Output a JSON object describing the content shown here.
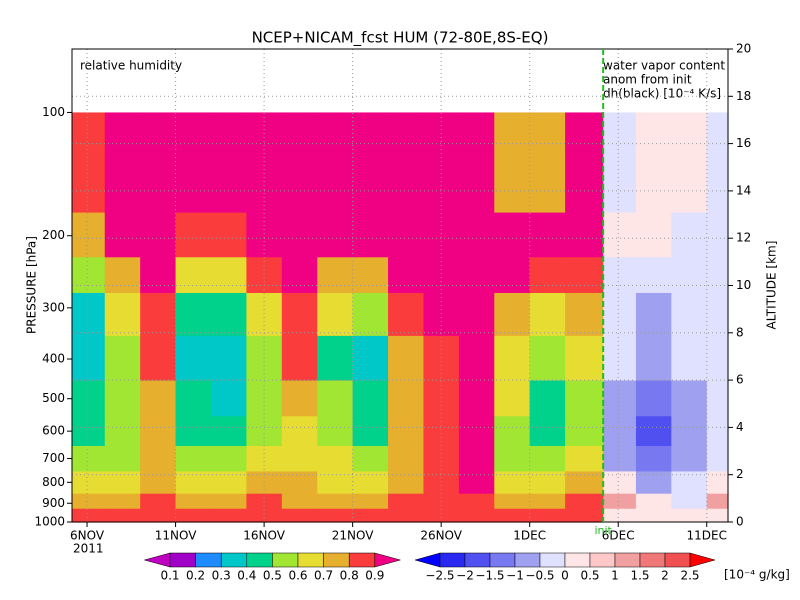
{
  "chart_data": {
    "type": "heatmap",
    "title": "NCEP+NICAM_fcst HUM (72-80E,8S-EQ)",
    "y_label": "PRESSURE [hPa]",
    "y2_label": "ALTITUDE [km]",
    "xlim": [
      5.15,
      42.2
    ],
    "xticks": [
      {
        "value": 6,
        "label": "6NOV"
      },
      {
        "value": 11,
        "label": "11NOV"
      },
      {
        "value": 16,
        "label": "16NOV"
      },
      {
        "value": 21,
        "label": "21NOV"
      },
      {
        "value": 26,
        "label": "26NOV"
      },
      {
        "value": 31,
        "label": "1DEC"
      },
      {
        "value": 36,
        "label": "6DEC"
      },
      {
        "value": 41,
        "label": "11DEC"
      }
    ],
    "year_label": "2011",
    "ylim": [
      1000,
      70
    ],
    "log_y": true,
    "yticks": [
      100,
      200,
      300,
      400,
      500,
      600,
      700,
      800,
      900,
      1000
    ],
    "y2lim": [
      0,
      20
    ],
    "y2ticks": [
      0,
      2,
      4,
      6,
      8,
      10,
      12,
      14,
      16,
      18,
      20
    ],
    "grid": true,
    "init": {
      "x": 35.15,
      "label": "init",
      "color": "#22bb22"
    },
    "pressure_bins": [
      1000,
      925,
      850,
      750,
      650,
      550,
      450,
      350,
      275,
      225,
      175,
      100
    ],
    "humidity": {
      "label": "relative humidity",
      "time_bins": [
        5.15,
        7,
        9,
        11,
        13,
        15,
        17,
        19,
        21,
        23,
        25,
        27,
        29,
        31,
        33,
        35.15
      ],
      "values": [
        [
          0.85,
          0.85,
          0.85,
          0.85,
          0.85,
          0.85,
          0.85,
          0.85,
          0.85,
          0.85,
          0.85,
          0.85,
          0.85,
          0.85,
          0.85
        ],
        [
          0.75,
          0.75,
          0.8,
          0.75,
          0.75,
          0.8,
          0.75,
          0.75,
          0.75,
          0.8,
          0.85,
          0.85,
          0.75,
          0.75,
          0.8
        ],
        [
          0.65,
          0.65,
          0.75,
          0.65,
          0.6,
          0.7,
          0.7,
          0.65,
          0.65,
          0.75,
          0.85,
          0.95,
          0.65,
          0.65,
          0.7
        ],
        [
          0.55,
          0.55,
          0.7,
          0.55,
          0.5,
          0.6,
          0.65,
          0.6,
          0.55,
          0.7,
          0.85,
          0.95,
          0.55,
          0.55,
          0.65
        ],
        [
          0.45,
          0.5,
          0.75,
          0.45,
          0.4,
          0.55,
          0.65,
          0.55,
          0.45,
          0.7,
          0.85,
          0.95,
          0.55,
          0.45,
          0.55
        ],
        [
          0.4,
          0.55,
          0.75,
          0.4,
          0.35,
          0.55,
          0.75,
          0.5,
          0.4,
          0.75,
          0.85,
          0.95,
          0.6,
          0.45,
          0.55
        ],
        [
          0.35,
          0.55,
          0.8,
          0.35,
          0.3,
          0.55,
          0.8,
          0.45,
          0.35,
          0.75,
          0.85,
          0.95,
          0.65,
          0.5,
          0.6
        ],
        [
          0.35,
          0.6,
          0.85,
          0.45,
          0.45,
          0.65,
          0.85,
          0.6,
          0.55,
          0.85,
          0.95,
          0.95,
          0.7,
          0.6,
          0.7
        ],
        [
          0.55,
          0.75,
          0.95,
          0.6,
          0.65,
          0.8,
          0.95,
          0.75,
          0.75,
          0.95,
          0.95,
          0.95,
          0.9,
          0.85,
          0.85
        ],
        [
          0.7,
          0.95,
          0.95,
          0.85,
          0.85,
          0.95,
          0.95,
          0.95,
          0.95,
          0.95,
          0.95,
          0.95,
          0.95,
          0.95,
          0.95
        ],
        [
          0.85,
          0.95,
          0.95,
          0.95,
          0.95,
          0.95,
          0.95,
          0.95,
          0.95,
          0.95,
          0.95,
          0.95,
          0.75,
          0.75,
          0.95
        ]
      ],
      "levels": [
        0.1,
        0.2,
        0.3,
        0.4,
        0.5,
        0.6,
        0.7,
        0.8,
        0.9
      ],
      "colors": [
        "#c000c0",
        "#a000c8",
        "#1e8cff",
        "#00c8c8",
        "#00d28c",
        "#a0e632",
        "#e6dc32",
        "#e6af2d",
        "#fa3c3c",
        "#f00082"
      ]
    },
    "anomaly": {
      "labels": [
        "water vapor content",
        "anom from init",
        "dh(black) [10⁻⁴ K/s]"
      ],
      "time_bins": [
        35.15,
        37,
        39,
        41,
        42.2
      ],
      "values": [
        [
          0.3,
          0.2,
          0.2,
          0.3
        ],
        [
          1.2,
          0.3,
          -0.3,
          1.2
        ],
        [
          0.3,
          -0.6,
          -0.3,
          0.2
        ],
        [
          -0.6,
          -1.2,
          -0.6,
          -0.3
        ],
        [
          -0.8,
          -1.7,
          -0.7,
          -0.3
        ],
        [
          -0.6,
          -1.2,
          -0.6,
          -0.3
        ],
        [
          -0.3,
          -0.7,
          -0.3,
          -0.3
        ],
        [
          -0.2,
          -0.6,
          -0.3,
          -0.2
        ],
        [
          -0.2,
          -0.2,
          -0.2,
          -0.2
        ],
        [
          0.2,
          0.2,
          -0.2,
          -0.2
        ],
        [
          -0.2,
          0.2,
          0.2,
          -0.2
        ]
      ],
      "levels": [
        {
          "value": -2.5,
          "label": "−2.5"
        },
        {
          "value": -2,
          "label": "−2"
        },
        {
          "value": -1.5,
          "label": "−1.5"
        },
        {
          "value": -1,
          "label": "−1"
        },
        {
          "value": -0.5,
          "label": "−0.5"
        },
        0,
        0.5,
        1,
        1.5,
        2,
        2.5
      ],
      "colors": [
        "#0000ff",
        "#2828f0",
        "#5050f0",
        "#7878f0",
        "#a0a0f0",
        "#e0e0ff",
        "#ffe6e6",
        "#ffc8c8",
        "#f0a0a0",
        "#f07878",
        "#f05050",
        "#ff0000"
      ],
      "unit": "[10⁻⁴ g/kg]"
    }
  }
}
